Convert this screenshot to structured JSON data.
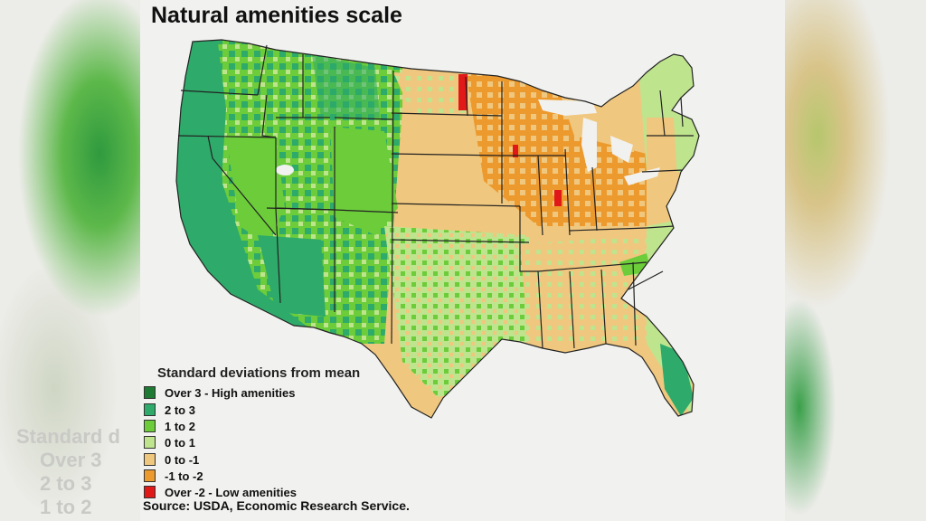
{
  "title": "Natural amenities scale",
  "legend": {
    "heading": "Standard deviations from mean",
    "items": [
      {
        "label": "Over 3  -  High amenities",
        "color": "#1f7a34"
      },
      {
        "label": "2 to 3",
        "color": "#2eaa6a"
      },
      {
        "label": "1 to 2",
        "color": "#6ccc3a"
      },
      {
        "label": "0 to 1",
        "color": "#bfe48e"
      },
      {
        "label": "0 to -1",
        "color": "#f0c77e"
      },
      {
        "label": "-1 to -2",
        "color": "#ec9a2e"
      },
      {
        "label": "Over -2  -  Low amenities",
        "color": "#e01818"
      }
    ]
  },
  "source": "Source: USDA, Economic Research Service.",
  "background_ghost_text": [
    "Standard d",
    "Over 3",
    "2 to 3",
    "1 to 2"
  ]
}
